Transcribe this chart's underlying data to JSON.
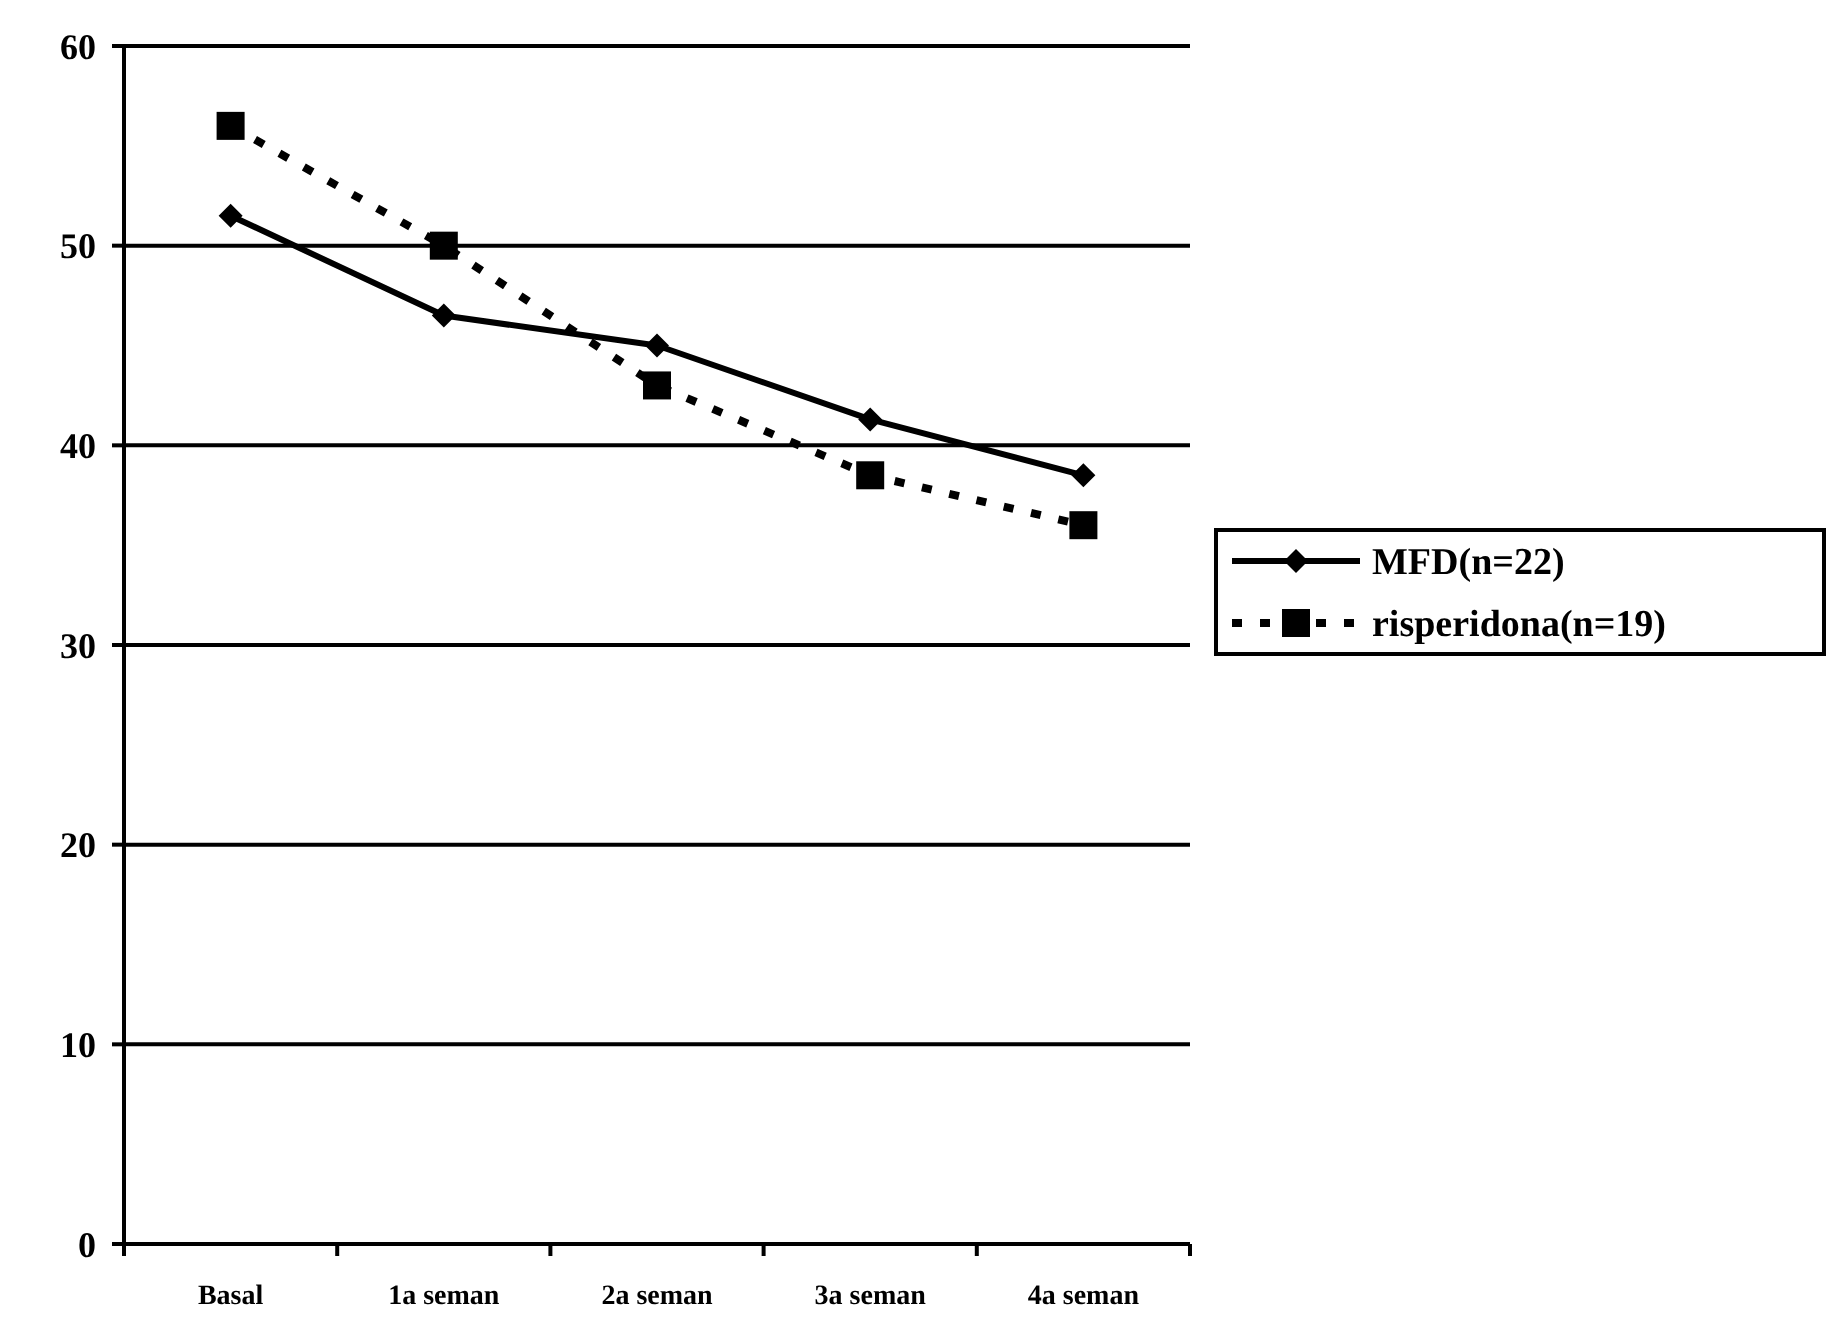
{
  "chart_data": {
    "type": "line",
    "categories": [
      "Basal",
      "1a seman",
      "2a seman",
      "3a seman",
      "4a seman"
    ],
    "series": [
      {
        "name": "MFD(n=22)",
        "color": "#000000",
        "values": [
          51.5,
          46.5,
          45,
          41.3,
          38.5
        ],
        "marker": "diamond",
        "line_style": "solid"
      },
      {
        "name": "risperidona(n=19)",
        "color": "#000000",
        "values": [
          56,
          50,
          43,
          38.5,
          36
        ],
        "marker": "square",
        "line_style": "dotted"
      }
    ],
    "ylim": [
      0,
      60
    ],
    "yticks": [
      0,
      10,
      20,
      30,
      40,
      50,
      60
    ],
    "grid": "y",
    "legend": "right"
  }
}
